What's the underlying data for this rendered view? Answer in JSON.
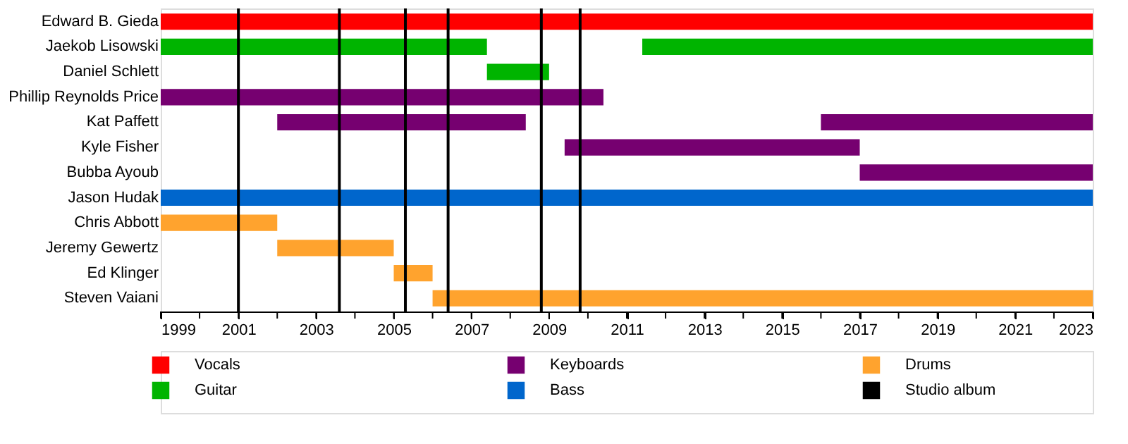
{
  "chart_data": {
    "type": "bar",
    "orientation": "horizontal",
    "grid": false,
    "legend": "bottom",
    "categories": [
      "Edward B. Gieda",
      "Jaekob Lisowski",
      "Daniel Schlett",
      "Phillip Reynolds Price",
      "Kat Paffett",
      "Kyle Fisher",
      "Bubba Ayoub",
      "Jason Hudak",
      "Chris Abbott",
      "Jeremy Gewertz",
      "Ed Klinger",
      "Steven Vaiani"
    ],
    "xlim": [
      1999,
      2023
    ],
    "xticks": [
      1999,
      {
        "value": 2000,
        "label": null
      },
      2001,
      {
        "value": 2002,
        "label": null
      },
      2003,
      {
        "value": 2004,
        "label": null
      },
      2005,
      {
        "value": 2006,
        "label": null
      },
      2007,
      {
        "value": 2008,
        "label": null
      },
      2009,
      {
        "value": 2010,
        "label": null
      },
      2011,
      {
        "value": 2012,
        "label": null
      },
      2013,
      {
        "value": 2014,
        "label": null
      },
      2015,
      {
        "value": 2016,
        "label": null
      },
      2017,
      {
        "value": 2018,
        "label": null
      },
      2019,
      {
        "value": 2020,
        "label": null
      },
      2021,
      {
        "value": 2022,
        "label": null
      },
      2023
    ],
    "series": [
      {
        "name": "Vocals",
        "color": "#ff0000",
        "base": [
          1999,
          null,
          null,
          null,
          null,
          null,
          null,
          null,
          null,
          null,
          null,
          null
        ],
        "values": [
          24,
          null,
          null,
          null,
          null,
          null,
          null,
          null,
          null,
          null,
          null,
          null
        ]
      },
      {
        "name": "Guitar",
        "color": "#00b400",
        "base": [
          null,
          1999,
          2007.4,
          null,
          null,
          null,
          null,
          null,
          null,
          null,
          null,
          null
        ],
        "values": [
          null,
          8.4,
          1.6,
          null,
          null,
          null,
          null,
          null,
          null,
          null,
          null,
          null
        ]
      },
      {
        "color": "#00b400",
        "base": [
          null,
          2011.4,
          null,
          null,
          null,
          null,
          null,
          null,
          null,
          null,
          null,
          null
        ],
        "values": [
          null,
          11.6,
          null,
          null,
          null,
          null,
          null,
          null,
          null,
          null,
          null,
          null
        ]
      },
      {
        "name": "Keyboards",
        "color": "#760070",
        "base": [
          null,
          null,
          null,
          1999,
          2002,
          2009.4,
          2017,
          null,
          null,
          null,
          null,
          null
        ],
        "values": [
          null,
          null,
          null,
          11.4,
          6.4,
          7.6,
          6,
          null,
          null,
          null,
          null,
          null
        ]
      },
      {
        "color": "#760070",
        "base": [
          null,
          null,
          null,
          null,
          2016,
          null,
          null,
          null,
          null,
          null,
          null,
          null
        ],
        "values": [
          null,
          null,
          null,
          null,
          7,
          null,
          null,
          null,
          null,
          null,
          null,
          null
        ]
      },
      {
        "name": "Bass",
        "color": "#0066cc",
        "base": [
          null,
          null,
          null,
          null,
          null,
          null,
          null,
          1999,
          null,
          null,
          null,
          null
        ],
        "values": [
          null,
          null,
          null,
          null,
          null,
          null,
          null,
          24,
          null,
          null,
          null,
          null
        ]
      },
      {
        "name": "Drums",
        "color": "#ffa32e",
        "base": [
          null,
          null,
          null,
          null,
          null,
          null,
          null,
          null,
          1999,
          2002,
          2005,
          2006
        ],
        "values": [
          null,
          null,
          null,
          null,
          null,
          null,
          null,
          null,
          3,
          3,
          1,
          17
        ]
      }
    ],
    "ref_lines": [
      {
        "axis": "x",
        "value": 2001,
        "label": "Studio album",
        "color": "#000000"
      },
      {
        "axis": "x",
        "value": 2003.6,
        "color": "#000000"
      },
      {
        "axis": "x",
        "value": 2005.3,
        "color": "#000000"
      },
      {
        "axis": "x",
        "value": 2006.4,
        "color": "#000000"
      },
      {
        "axis": "x",
        "value": 2008.8,
        "color": "#000000"
      },
      {
        "axis": "x",
        "value": 2009.8,
        "color": "#000000"
      }
    ]
  }
}
